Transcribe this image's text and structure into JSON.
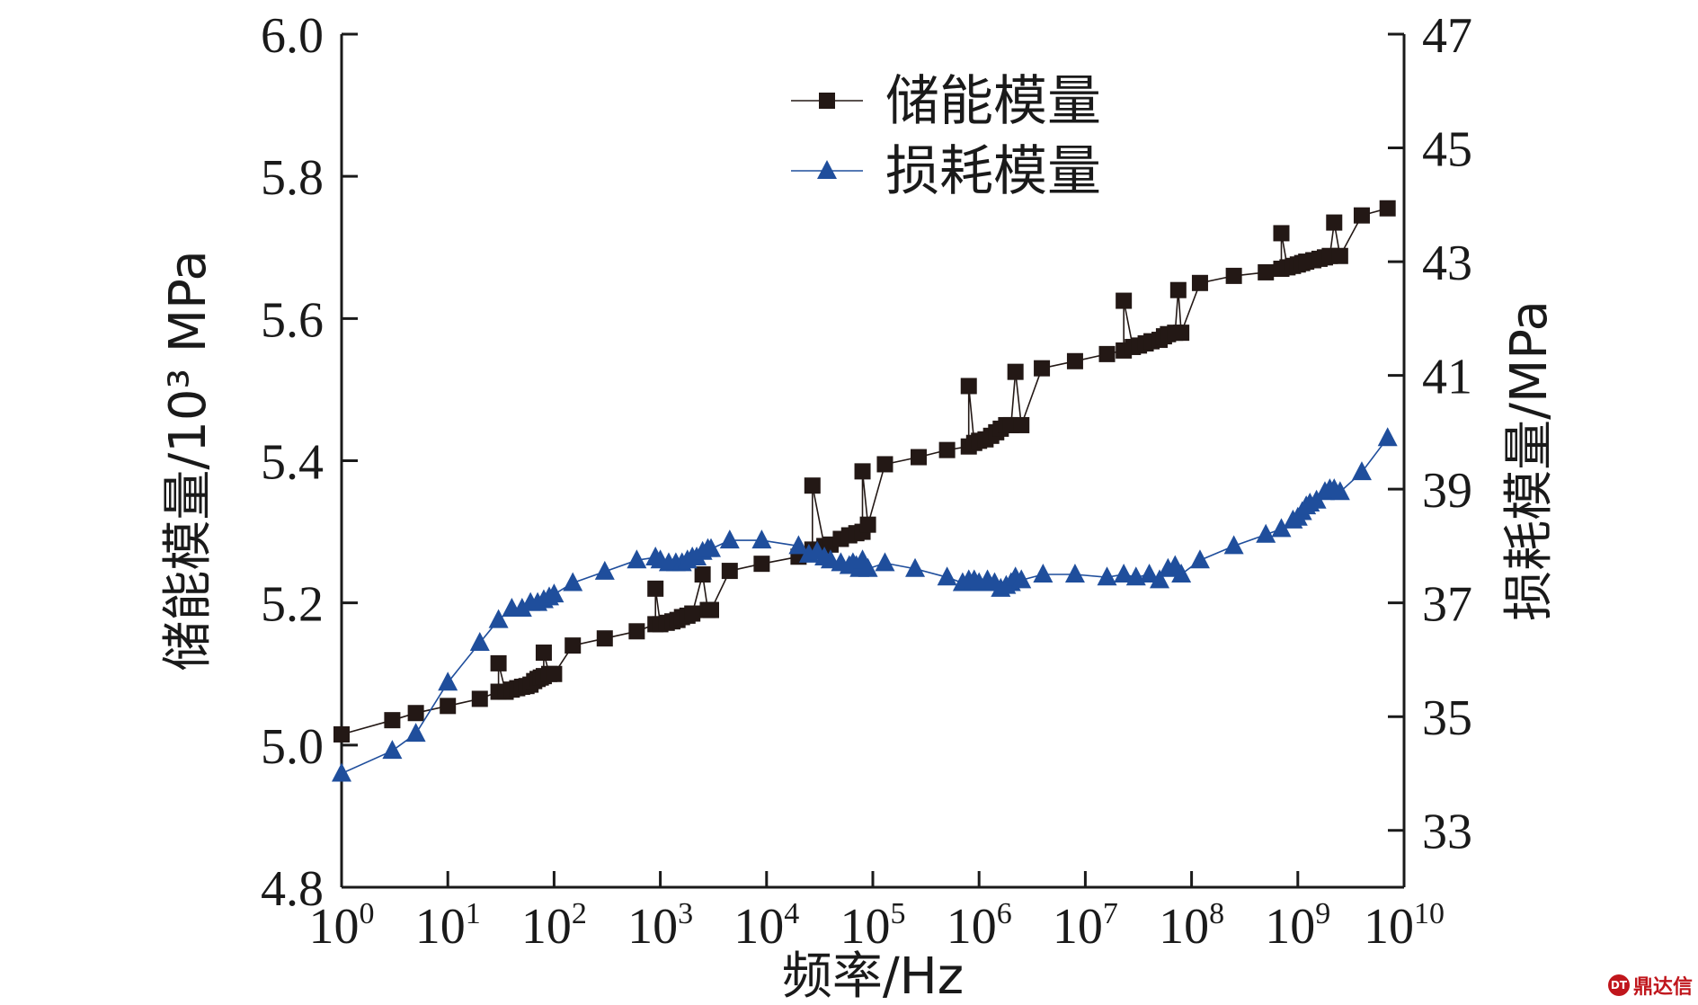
{
  "chart_data": {
    "type": "line",
    "xlabel": "频率/Hz",
    "ylabel_left": "储能模量/10³ MPa",
    "ylabel_right": "损耗模量/MPa",
    "x_scale": "log",
    "x_range_exponent": [
      0,
      10
    ],
    "x_ticks": [
      "10^0",
      "10^1",
      "10^2",
      "10^3",
      "10^4",
      "10^5",
      "10^6",
      "10^7",
      "10^8",
      "10^9",
      "10^10"
    ],
    "ylim_left": [
      4.8,
      6.0
    ],
    "ylim_right": [
      32,
      47
    ],
    "y_ticks_left": [
      "4.8",
      "5.0",
      "5.2",
      "5.4",
      "5.6",
      "5.8",
      "6.0"
    ],
    "y_ticks_right": [
      "33",
      "35",
      "37",
      "39",
      "41",
      "43",
      "45",
      "47"
    ],
    "legend": [
      "储能模量",
      "损耗模量"
    ],
    "legend_position": "top-center",
    "grid": false,
    "series": [
      {
        "name": "储能模量",
        "axis": "left",
        "color": "#231815",
        "marker": "square",
        "x": [
          1,
          3,
          5,
          10,
          20,
          30,
          30,
          35,
          40,
          45,
          50,
          55,
          60,
          65,
          70,
          75,
          80,
          80,
          90,
          100,
          150,
          300,
          600,
          900,
          900,
          1000,
          1150,
          1300,
          1450,
          1600,
          1800,
          2000,
          2500,
          2800,
          3000,
          4500,
          9000,
          20000,
          27000,
          27000,
          35000,
          40000,
          50000,
          60000,
          70000,
          80000,
          80000,
          90000,
          130000,
          270000,
          500000,
          800000,
          800000,
          900000,
          1000000,
          1150000,
          1300000,
          1450000,
          1600000,
          1800000,
          2000000,
          2200000,
          2500000,
          3900000,
          8000000,
          16000000,
          23000000,
          23000000,
          28000000,
          32000000,
          37000000,
          42000000,
          50000000,
          55000000,
          60000000,
          70000000,
          75000000,
          80000000,
          120000000,
          250000000,
          500000000,
          700000000,
          700000000,
          800000000,
          900000000,
          1000000000,
          1100000000,
          1200000000,
          1400000000,
          1600000000,
          1800000000,
          2000000000,
          2200000000,
          2500000000,
          4000000000,
          7000000000
        ],
        "values": [
          5.015,
          5.035,
          5.045,
          5.055,
          5.065,
          5.075,
          5.115,
          5.075,
          5.078,
          5.08,
          5.082,
          5.083,
          5.085,
          5.09,
          5.093,
          5.095,
          5.097,
          5.13,
          5.1,
          5.1,
          5.14,
          5.15,
          5.16,
          5.17,
          5.22,
          5.17,
          5.172,
          5.174,
          5.176,
          5.18,
          5.182,
          5.185,
          5.24,
          5.19,
          5.19,
          5.245,
          5.255,
          5.265,
          5.275,
          5.365,
          5.28,
          5.282,
          5.29,
          5.295,
          5.298,
          5.3,
          5.385,
          5.31,
          5.395,
          5.405,
          5.415,
          5.42,
          5.505,
          5.425,
          5.428,
          5.43,
          5.435,
          5.44,
          5.445,
          5.45,
          5.45,
          5.525,
          5.45,
          5.53,
          5.54,
          5.55,
          5.555,
          5.625,
          5.56,
          5.562,
          5.565,
          5.568,
          5.57,
          5.575,
          5.578,
          5.58,
          5.64,
          5.58,
          5.65,
          5.66,
          5.665,
          5.67,
          5.72,
          5.672,
          5.674,
          5.676,
          5.678,
          5.68,
          5.682,
          5.684,
          5.686,
          5.688,
          5.735,
          5.688,
          5.745,
          5.755
        ]
      },
      {
        "name": "损耗模量",
        "axis": "right",
        "color": "#1f4e9c",
        "marker": "triangle",
        "x": [
          1,
          3,
          5,
          10,
          20,
          30,
          40,
          50,
          60,
          70,
          80,
          90,
          100,
          150,
          300,
          600,
          900,
          1000,
          1200,
          1400,
          1600,
          1800,
          2000,
          2200,
          2500,
          2800,
          3000,
          4500,
          9000,
          20000,
          25000,
          30000,
          35000,
          40000,
          50000,
          60000,
          65000,
          70000,
          75000,
          80000,
          90000,
          130000,
          250000,
          500000,
          700000,
          800000,
          900000,
          1000000,
          1200000,
          1400000,
          1600000,
          1800000,
          2000000,
          2200000,
          2500000,
          4000000,
          8000000,
          16000000,
          23000000,
          30000000,
          40000000,
          50000000,
          60000000,
          70000000,
          80000000,
          120000000,
          250000000,
          500000000,
          700000000,
          900000000,
          1000000000,
          1100000000,
          1200000000,
          1300000000,
          1500000000,
          1800000000,
          2000000000,
          2200000000,
          2500000000,
          4000000000,
          7000000000
        ],
        "values": [
          34.0,
          34.4,
          34.7,
          35.6,
          36.3,
          36.7,
          36.9,
          36.9,
          37.0,
          37.0,
          37.05,
          37.1,
          37.15,
          37.35,
          37.55,
          37.75,
          37.8,
          37.75,
          37.7,
          37.7,
          37.7,
          37.75,
          37.8,
          37.8,
          37.9,
          37.95,
          37.95,
          38.1,
          38.1,
          38.0,
          37.85,
          37.9,
          37.8,
          37.75,
          37.7,
          37.65,
          37.7,
          37.65,
          37.6,
          37.75,
          37.6,
          37.7,
          37.6,
          37.45,
          37.35,
          37.4,
          37.4,
          37.35,
          37.4,
          37.35,
          37.25,
          37.3,
          37.35,
          37.45,
          37.4,
          37.5,
          37.5,
          37.45,
          37.5,
          37.45,
          37.5,
          37.4,
          37.6,
          37.65,
          37.5,
          37.75,
          38.0,
          38.2,
          38.3,
          38.45,
          38.5,
          38.6,
          38.7,
          38.75,
          38.8,
          38.95,
          39.0,
          39.0,
          38.95,
          39.3,
          39.9
        ]
      }
    ]
  },
  "watermark": {
    "text": "鼎达信",
    "logo": "DT"
  }
}
